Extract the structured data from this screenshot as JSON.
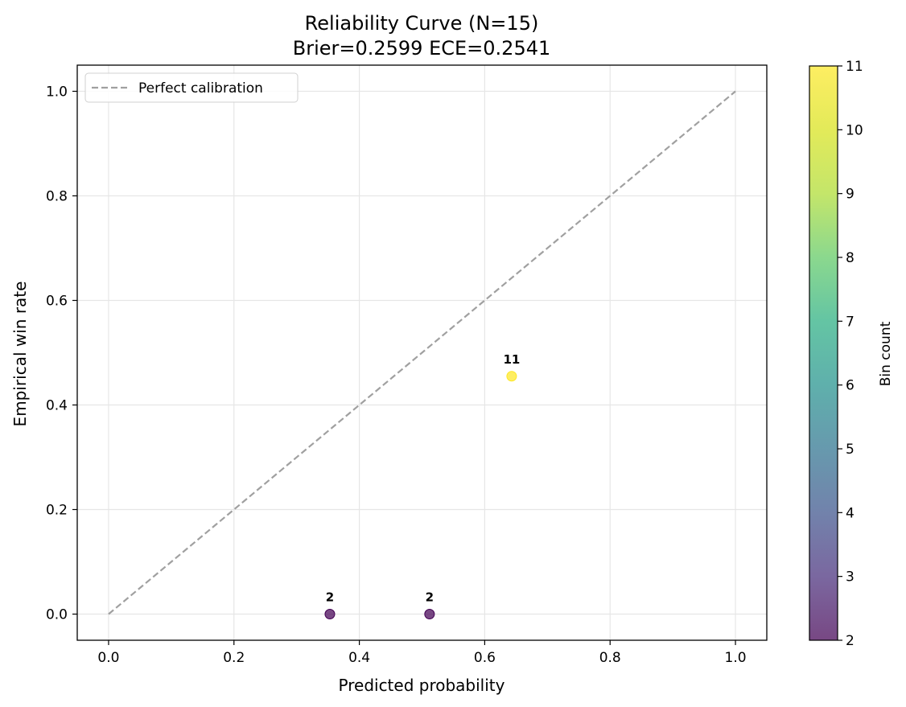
{
  "chart_data": {
    "type": "scatter",
    "title": "Reliability Curve (N=15)",
    "subtitle": "Brier=0.2599  ECE=0.2541",
    "xlabel": "Predicted probability",
    "ylabel": "Empirical win rate",
    "xlim": [
      -0.05,
      1.05
    ],
    "ylim": [
      -0.05,
      1.05
    ],
    "x_ticks": [
      "0.0",
      "0.2",
      "0.4",
      "0.6",
      "0.8",
      "1.0"
    ],
    "y_ticks": [
      "0.0",
      "0.2",
      "0.4",
      "0.6",
      "0.8",
      "1.0"
    ],
    "grid": true,
    "legend": {
      "position": "top-left",
      "entries": [
        {
          "label": "Perfect calibration",
          "style": "dashed",
          "color": "#a0a0a0"
        }
      ]
    },
    "reference_line": {
      "name": "Perfect calibration",
      "x": [
        0,
        1
      ],
      "y": [
        0,
        1
      ],
      "color": "#a0a0a0"
    },
    "points": [
      {
        "x": 0.353,
        "y": 0.0,
        "count": 2,
        "label": "2"
      },
      {
        "x": 0.512,
        "y": 0.0,
        "count": 2,
        "label": "2"
      },
      {
        "x": 0.643,
        "y": 0.455,
        "count": 11,
        "label": "11"
      }
    ],
    "colorbar": {
      "label": "Bin count",
      "min": 2,
      "max": 11,
      "ticks": [
        "2",
        "3",
        "4",
        "5",
        "6",
        "7",
        "8",
        "9",
        "10",
        "11"
      ],
      "colormap": "viridis"
    }
  }
}
